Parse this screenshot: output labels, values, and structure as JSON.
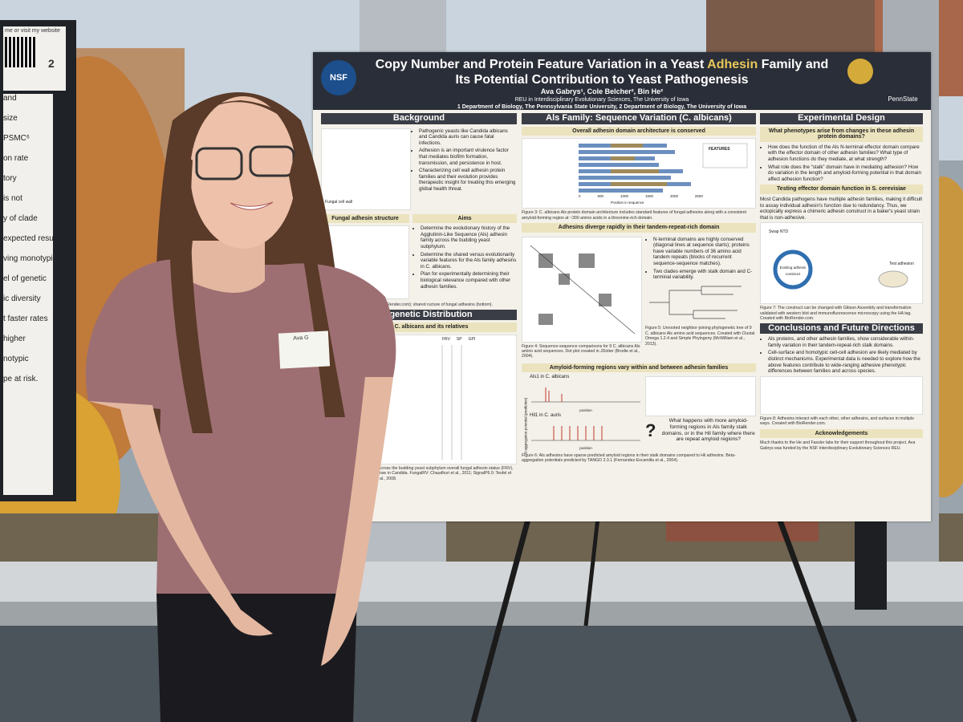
{
  "left_poster": {
    "corner_text": "me or visit my website",
    "number": "2",
    "fragments": [
      "and",
      "size",
      "PSMC⁶",
      "on rate",
      "tory",
      "is not",
      "y of clade",
      "expected result",
      "ving monotypic",
      "el of genetic",
      "ic diversity",
      "t faster rates",
      "higher",
      "notypic",
      "pe at risk."
    ]
  },
  "name_tag": "Ava G",
  "poster": {
    "logo_left": "NSF",
    "logo_right": "PennState",
    "title_parts": [
      "Copy Number and Protein Feature Variation in a Yeast ",
      "Adhesin",
      " Family and",
      "Its Potential Contribution to Yeast Pathogenesis"
    ],
    "authors": "Ava Gabrys¹, Cole Belcher², Bin He²",
    "affiliation_1": "REU in Interdisciplinary Evolutionary Sciences, The University of Iowa",
    "affiliation_2": "1 Department of Biology, The Pennsylvania State University, 2 Department of Biology, The University of Iowa",
    "background": {
      "heading": "Background",
      "items": [
        "Pathogenic yeasts like Candida albicans and Candida auris can cause fatal infections.",
        "Adhesion is an important virulence factor that mediates biofilm formation, transmission, and persistence in host.",
        "Characterizing cell wall adhesin protein families and their evolution provides therapeutic insight for treating this emerging global health threat."
      ],
      "figure_label": "Fungal cell wall"
    },
    "structure": {
      "heading": "Fungal adhesin structure"
    },
    "aims": {
      "heading": "Aims",
      "items": [
        "Determine the evolutionary history of the Agglutinin-Like Sequence (Als) adhesin family across the budding yeast subphylum.",
        "Determine the shared versus evolutionarily variable features for the Als family adhesins in C. albicans.",
        "Plan for experimentally determining their biological relevance compared with other adhesin families."
      ],
      "caption": "ngal adhesins (top; created with BioRender.com); shared ructure of fungal adhesins (bottom)."
    },
    "phylogeny": {
      "heading": "Phylogenetic Distribution",
      "subheading": "riched in C. albicans and its relatives",
      "columns": [
        "FRV",
        "SP",
        "GPI"
      ],
      "caption": "with the Als N-terminal domain across the budding yeast subphylum overall fungal adhesin status (FRV), Signal Peptide (SP), and GPI those in Candida. FungalRV: Chaudhuri et al., 2011; SignalP6.0: Teufel et al., 2022; PredGPI: Pierleoni et al., 2008."
    },
    "als": {
      "heading": "Als Family: Sequence Variation (C. albicans)",
      "sub1": "Overall adhesin domain architecture is conserved",
      "axis_label": "Position in sequence",
      "ticks": [
        "0",
        "500",
        "1000",
        "1500",
        "2000",
        "2500"
      ],
      "legend_title": "FEATURES",
      "caption3": "Figure 3: C. albicans Als protein domain architecture includes standard features of fungal adhesins along with a consistent amyloid-forming region at ~300 amino acids in a threonine-rich domain.",
      "sub2": "Adhesins diverge rapidly in their tandem-repeat-rich domain",
      "items": [
        "N-terminal domains are highly conserved (diagonal lines at sequence starts); proteins have variable numbers of 36 amino acid tandem repeats (blocks of recurrent sequence-sequence matches).",
        "Two clades emerge with stalk domain and C-terminal variability."
      ],
      "caption4": "Figure 4: Sequence-sequence comparisons for 9 C. albicans Als amino acid sequences. Dot plot created in JDotter (Brodie et al., 2004).",
      "caption5": "Figure 5: Unrooted neighbor-joining phylogenetic tree of 9 C. albicans Als amino acid sequences. Created with Clustal Omega 1.2.4 and Simple Phylogeny (McWilliam et al., 2013).",
      "sub3": "Amyloid-forming regions vary within and between adhesin families",
      "plot1": "Als1 in C. albicans",
      "plot2": "Hil1 in C. auris",
      "plot_xlabel": "position",
      "plot_ylabel": "B-aggregation potential (prediction)",
      "question_mark": "?",
      "question": "What happens with more amyloid-forming regions in Als family stalk domains, or in the Hil family where there are repeat amyloid regions?",
      "caption6": "Figure 6: Als adhesins have sparse predicted amyloid regions in their stalk domains compared to Hil adhesins. Beta-aggregation potentials predicted by TANGO 2.3.1 (Fernandez-Escamilla et al., 2004)."
    },
    "design": {
      "heading": "Experimental Design",
      "sub1": "What phenotypes arise from changes in these adhesin protein domains?",
      "items": [
        "How does the function of the Als N-terminal effector domain compare with the effector domain of other adhesin families? What type of adhesion functions do they mediate, at what strength?",
        "What role does the “stalk” domain have in mediating adhesion? How do variation in the length and amyloid-forming potential in that domain affect adhesion function?"
      ],
      "sub2": "Testing effector domain function in S. cerevisiae",
      "paragraph": "Most Candida pathogens have multiple adhesin families, making it difficult to assay individual adhesin's function due to redundancy. Thus, we ectopically express a chimeric adhesin construct in a baker's yeast strain that is non-adhesive.",
      "figure_labels": [
        "Swap NTD",
        "Existing adhesin construct",
        "Test adhesion"
      ],
      "caption7": "Figure 7: The construct can be changed with Gibson Assembly and transformation validated with western blot and immunofluorescence microscopy using the HA tag. Created with BioRender.com."
    },
    "conclusions": {
      "heading": "Conclusions and Future Directions",
      "items": [
        "Als proteins, and other adhesin families, show considerable within-family variation in their tandem-repeat-rich stalk domains.",
        "Cell-surface and homotypic cell-cell adhesion are likely mediated by distinct mechanisms. Experimental data is needed to explore how the above features contribute to wide-ranging adhesive phenotypic differences between families and across species."
      ],
      "caption8": "Figure 8: Adhesins interact with each other, other adhesins, and surfaces in multiple ways. Created with BioRender.com.",
      "ack_heading": "Acknowledgements",
      "ack_text": "Much thanks to the He and Fassler labs for their support throughout this project. Ava Gabrys was funded by the NSF Interdisciplinary Evolutionary Sciences REU."
    }
  }
}
